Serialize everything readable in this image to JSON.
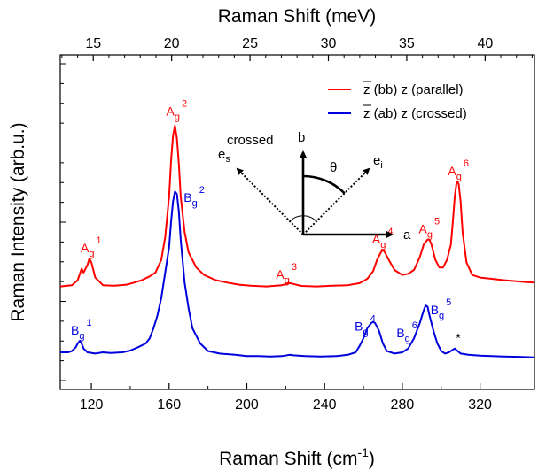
{
  "chart_data": {
    "type": "line",
    "xlabel": "Raman Shift (cm-1)",
    "xlabel_base": "Raman Shift (cm",
    "xlabel_sup": "-1",
    "xlabel_close": ")",
    "x2label": "Raman Shift (meV)",
    "ylabel": "Raman Intensity (arb.u.)",
    "xlim": [
      104,
      348
    ],
    "ylim": [
      0,
      1
    ],
    "x_ticks": [
      120,
      160,
      200,
      240,
      280,
      320
    ],
    "x2_ticks": [
      15,
      20,
      25,
      30,
      35,
      40
    ],
    "x2_factor": 8.0655,
    "grid": false,
    "legend_position": "top-right",
    "series": [
      {
        "name": "z (bb) z  (parallel)",
        "color": "#ff0000",
        "points": [
          [
            104,
            0.365
          ],
          [
            110,
            0.37
          ],
          [
            113,
            0.39
          ],
          [
            115,
            0.435
          ],
          [
            116,
            0.42
          ],
          [
            118,
            0.45
          ],
          [
            119,
            0.475
          ],
          [
            120,
            0.46
          ],
          [
            122,
            0.4
          ],
          [
            126,
            0.37
          ],
          [
            132,
            0.368
          ],
          [
            138,
            0.372
          ],
          [
            142,
            0.38
          ],
          [
            146,
            0.39
          ],
          [
            150,
            0.405
          ],
          [
            153,
            0.42
          ],
          [
            156,
            0.47
          ],
          [
            158,
            0.56
          ],
          [
            160,
            0.72
          ],
          [
            161,
            0.86
          ],
          [
            162,
            0.96
          ],
          [
            163,
            1.0
          ],
          [
            164,
            0.95
          ],
          [
            165,
            0.85
          ],
          [
            166,
            0.72
          ],
          [
            168,
            0.58
          ],
          [
            170,
            0.5
          ],
          [
            174,
            0.44
          ],
          [
            178,
            0.41
          ],
          [
            184,
            0.39
          ],
          [
            190,
            0.38
          ],
          [
            196,
            0.372
          ],
          [
            202,
            0.368
          ],
          [
            210,
            0.365
          ],
          [
            218,
            0.37
          ],
          [
            222,
            0.378
          ],
          [
            224,
            0.375
          ],
          [
            228,
            0.367
          ],
          [
            236,
            0.365
          ],
          [
            244,
            0.368
          ],
          [
            252,
            0.37
          ],
          [
            258,
            0.378
          ],
          [
            262,
            0.395
          ],
          [
            265,
            0.425
          ],
          [
            267,
            0.47
          ],
          [
            269,
            0.5
          ],
          [
            270,
            0.51
          ],
          [
            271,
            0.5
          ],
          [
            273,
            0.47
          ],
          [
            276,
            0.43
          ],
          [
            280,
            0.41
          ],
          [
            283,
            0.415
          ],
          [
            286,
            0.43
          ],
          [
            289,
            0.48
          ],
          [
            291,
            0.53
          ],
          [
            293,
            0.55
          ],
          [
            294,
            0.55
          ],
          [
            295,
            0.53
          ],
          [
            297,
            0.47
          ],
          [
            299,
            0.44
          ],
          [
            301,
            0.44
          ],
          [
            303,
            0.47
          ],
          [
            305,
            0.53
          ],
          [
            306,
            0.62
          ],
          [
            307,
            0.72
          ],
          [
            308,
            0.78
          ],
          [
            309,
            0.77
          ],
          [
            310,
            0.7
          ],
          [
            311,
            0.58
          ],
          [
            313,
            0.46
          ],
          [
            316,
            0.41
          ],
          [
            320,
            0.4
          ],
          [
            326,
            0.395
          ],
          [
            332,
            0.39
          ],
          [
            338,
            0.386
          ],
          [
            344,
            0.382
          ],
          [
            348,
            0.38
          ]
        ]
      },
      {
        "name": "z (ab) z  (crossed)",
        "color": "#0000dd",
        "points": [
          [
            104,
            0.105
          ],
          [
            108,
            0.105
          ],
          [
            110,
            0.11
          ],
          [
            112,
            0.125
          ],
          [
            113,
            0.14
          ],
          [
            114,
            0.15
          ],
          [
            115,
            0.14
          ],
          [
            116,
            0.12
          ],
          [
            118,
            0.105
          ],
          [
            122,
            0.1
          ],
          [
            126,
            0.105
          ],
          [
            130,
            0.102
          ],
          [
            136,
            0.105
          ],
          [
            140,
            0.112
          ],
          [
            144,
            0.125
          ],
          [
            148,
            0.14
          ],
          [
            150,
            0.16
          ],
          [
            152,
            0.2
          ],
          [
            154,
            0.25
          ],
          [
            156,
            0.32
          ],
          [
            158,
            0.42
          ],
          [
            160,
            0.52
          ],
          [
            161,
            0.62
          ],
          [
            162,
            0.7
          ],
          [
            163,
            0.74
          ],
          [
            164,
            0.73
          ],
          [
            165,
            0.66
          ],
          [
            166,
            0.55
          ],
          [
            168,
            0.38
          ],
          [
            170,
            0.28
          ],
          [
            172,
            0.2
          ],
          [
            176,
            0.14
          ],
          [
            180,
            0.11
          ],
          [
            186,
            0.1
          ],
          [
            194,
            0.095
          ],
          [
            200,
            0.09
          ],
          [
            206,
            0.09
          ],
          [
            212,
            0.088
          ],
          [
            218,
            0.09
          ],
          [
            222,
            0.095
          ],
          [
            224,
            0.093
          ],
          [
            230,
            0.09
          ],
          [
            238,
            0.088
          ],
          [
            246,
            0.09
          ],
          [
            252,
            0.095
          ],
          [
            256,
            0.105
          ],
          [
            258,
            0.13
          ],
          [
            260,
            0.16
          ],
          [
            262,
            0.2
          ],
          [
            264,
            0.22
          ],
          [
            265,
            0.225
          ],
          [
            266,
            0.22
          ],
          [
            268,
            0.19
          ],
          [
            270,
            0.14
          ],
          [
            272,
            0.11
          ],
          [
            276,
            0.1
          ],
          [
            280,
            0.105
          ],
          [
            283,
            0.12
          ],
          [
            286,
            0.16
          ],
          [
            289,
            0.22
          ],
          [
            291,
            0.27
          ],
          [
            292,
            0.29
          ],
          [
            293,
            0.285
          ],
          [
            294,
            0.25
          ],
          [
            296,
            0.19
          ],
          [
            298,
            0.14
          ],
          [
            300,
            0.11
          ],
          [
            302,
            0.1
          ],
          [
            304,
            0.105
          ],
          [
            306,
            0.115
          ],
          [
            307,
            0.12
          ],
          [
            308,
            0.113
          ],
          [
            310,
            0.1
          ],
          [
            314,
            0.095
          ],
          [
            320,
            0.092
          ],
          [
            326,
            0.09
          ],
          [
            332,
            0.088
          ],
          [
            340,
            0.087
          ],
          [
            348,
            0.085
          ]
        ]
      }
    ],
    "annotations": [
      {
        "base": "A",
        "sub": "g",
        "sup": "1",
        "x": 114.5,
        "y": 0.5,
        "color": "#ff0000"
      },
      {
        "base": "A",
        "sub": "g",
        "sup": "2",
        "x": 158.5,
        "y": 1.04,
        "color": "#ff0000"
      },
      {
        "base": "A",
        "sub": "g",
        "sup": "3",
        "x": 215,
        "y": 0.395,
        "color": "#ff0000"
      },
      {
        "base": "A",
        "sub": "g",
        "sup": "4",
        "x": 264.5,
        "y": 0.535,
        "color": "#ff0000"
      },
      {
        "base": "A",
        "sub": "g",
        "sup": "5",
        "x": 288.5,
        "y": 0.575,
        "color": "#ff0000"
      },
      {
        "base": "A",
        "sub": "g",
        "sup": "6",
        "x": 303.5,
        "y": 0.805,
        "color": "#ff0000"
      },
      {
        "base": "B",
        "sub": "g",
        "sup": "1",
        "x": 109.5,
        "y": 0.175,
        "color": "#0000dd"
      },
      {
        "base": "B",
        "sub": "g",
        "sup": "2",
        "x": 167.5,
        "y": 0.7,
        "color": "#0000dd"
      },
      {
        "base": "B",
        "sub": "g",
        "sup": "4",
        "x": 255.5,
        "y": 0.19,
        "color": "#0000dd"
      },
      {
        "base": "B",
        "sub": "g",
        "sup": "5",
        "x": 294.5,
        "y": 0.255,
        "color": "#0000dd"
      },
      {
        "base": "B",
        "sub": "g",
        "sup": "6",
        "x": 277,
        "y": 0.165,
        "color": "#0000dd"
      },
      {
        "base": "*",
        "sub": "",
        "sup": "",
        "x": 307.5,
        "y": 0.145,
        "color": "#000000"
      }
    ],
    "inset": {
      "label_a": "a",
      "label_b": "b",
      "label_theta": "θ",
      "label_ei_base": "e",
      "label_ei_sub": "i",
      "label_es_base": "e",
      "label_es_sub": "s",
      "label_es_sup": "crossed"
    }
  }
}
